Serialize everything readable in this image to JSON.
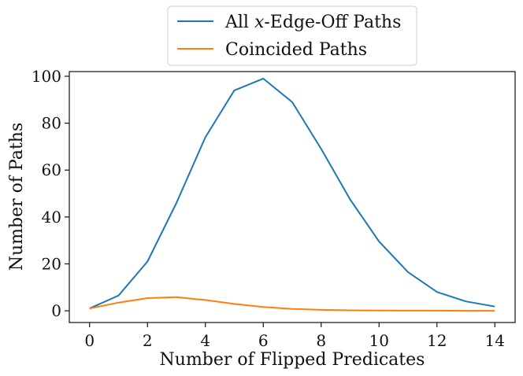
{
  "chart_data": {
    "type": "line",
    "xlabel": "Number of Flipped Predicates",
    "ylabel": "Number of Paths",
    "xlim": [
      -0.7,
      14.7
    ],
    "ylim": [
      -5,
      102
    ],
    "xticks": [
      0,
      2,
      4,
      6,
      8,
      10,
      12,
      14
    ],
    "yticks": [
      0,
      20,
      40,
      60,
      80,
      100
    ],
    "x": [
      0,
      1,
      2,
      3,
      4,
      5,
      6,
      7,
      8,
      9,
      10,
      11,
      12,
      13,
      14
    ],
    "legend_position": "top-center",
    "grid": false,
    "series": [
      {
        "name_prefix": "All ",
        "name_italic": "x",
        "name_suffix": "-Edge-Off Paths",
        "color": "#1f77b4",
        "values": [
          1,
          6.5,
          21,
          46,
          74,
          94,
          99,
          89,
          69,
          47.5,
          29.5,
          16.5,
          8,
          4,
          1.8
        ]
      },
      {
        "name": "Coincided Paths",
        "color": "#ff7f0e",
        "values": [
          1,
          3.5,
          5.4,
          5.8,
          4.6,
          2.9,
          1.6,
          0.8,
          0.4,
          0.2,
          0.1,
          0.05,
          0.05,
          0,
          0
        ]
      }
    ]
  }
}
